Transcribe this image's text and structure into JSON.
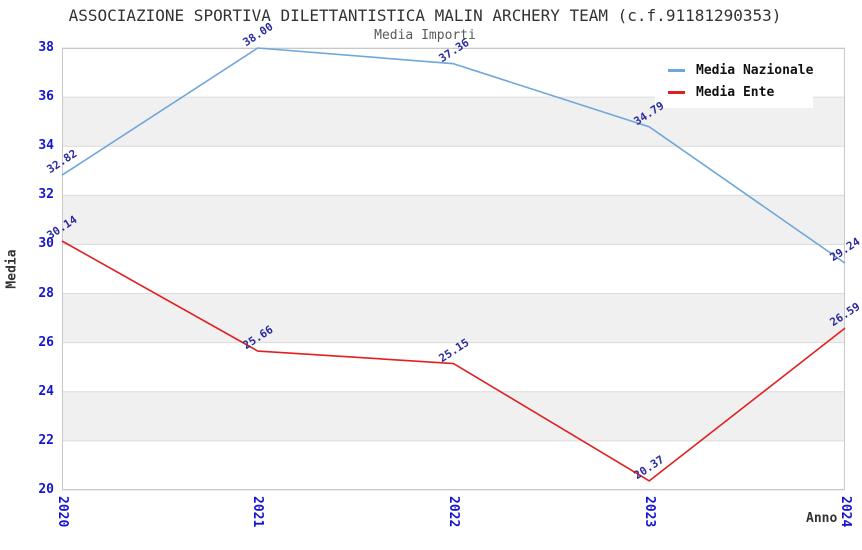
{
  "header": {
    "title": "ASSOCIAZIONE SPORTIVA DILETTANTISTICA MALIN ARCHERY TEAM (c.f.91181290353)",
    "subtitle": "Media Importi"
  },
  "chart_data": {
    "type": "line",
    "title": "ASSOCIAZIONE SPORTIVA DILETTANTISTICA MALIN ARCHERY TEAM (c.f.91181290353)",
    "subtitle": "Media Importi",
    "categories": [
      "2020",
      "2021",
      "2022",
      "2023",
      "2024"
    ],
    "series": [
      {
        "name": "Media Nazionale",
        "color": "#6EA7DB",
        "values": [
          32.82,
          38.0,
          37.36,
          34.79,
          29.24
        ]
      },
      {
        "name": "Media Ente",
        "color": "#E02020",
        "values": [
          30.14,
          25.66,
          25.15,
          20.37,
          26.59
        ]
      }
    ],
    "xlabel": "Anno",
    "ylabel": "Media",
    "ylim": [
      20,
      38
    ],
    "yticks": [
      20,
      22,
      24,
      26,
      28,
      30,
      32,
      34,
      36,
      38
    ],
    "grid": "alternating-horizontal-bands",
    "legend_position": "top-right"
  },
  "colors": {
    "tick_label": "#1515CF",
    "point_label": "#2B2BA0",
    "band": "#F0F0F0",
    "gridline": "#DCDCDC",
    "plot_border": "#C8C8C8",
    "title": "#333333",
    "subtitle": "#5A5A5A",
    "axis_label": "#333333",
    "legend_text": "#111111",
    "background": "#FFFFFF"
  }
}
